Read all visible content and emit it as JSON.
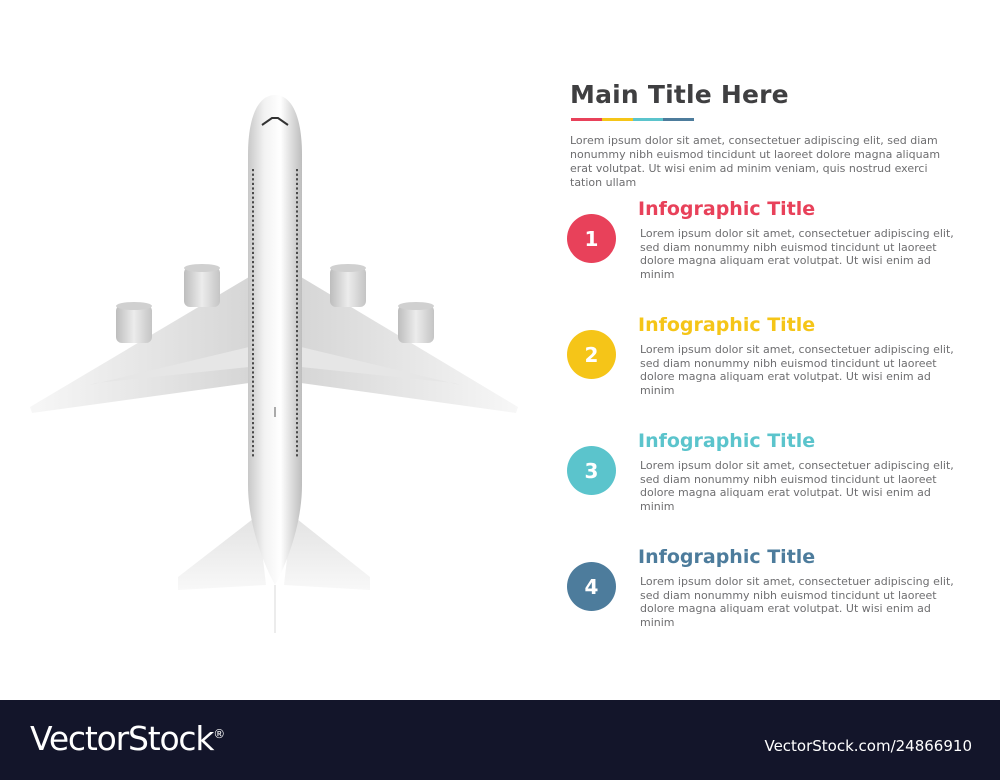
{
  "main": {
    "title": "Main Title Here",
    "rule_colors": [
      "#e8415a",
      "#f5c518",
      "#5bc4cc",
      "#4d7c9c"
    ],
    "intro": "Lorem ipsum dolor sit amet, consectetuer adipiscing elit, sed diam nonummy nibh euismod tincidunt ut laoreet dolore magna aliquam erat volutpat. Ut wisi enim ad minim veniam, quis nostrud exerci tation ullam"
  },
  "steps": [
    {
      "number": "1",
      "title": "Infographic Title",
      "color": "#e8415a",
      "text": "Lorem ipsum dolor sit amet, consectetuer adipiscing elit, sed diam nonummy nibh euismod tincidunt ut laoreet dolore magna aliquam erat volutpat. Ut wisi enim ad minim"
    },
    {
      "number": "2",
      "title": "Infographic Title",
      "color": "#f5c518",
      "text": "Lorem ipsum dolor sit amet, consectetuer adipiscing elit, sed diam nonummy nibh euismod tincidunt ut laoreet dolore magna aliquam erat volutpat. Ut wisi enim ad minim"
    },
    {
      "number": "3",
      "title": "Infographic Title",
      "color": "#5bc4cc",
      "text": "Lorem ipsum dolor sit amet, consectetuer adipiscing elit, sed diam nonummy nibh euismod tincidunt ut laoreet dolore magna aliquam erat volutpat. Ut wisi enim ad minim"
    },
    {
      "number": "4",
      "title": "Infographic Title",
      "color": "#4d7c9c",
      "text": "Lorem ipsum dolor sit amet, consectetuer adipiscing elit, sed diam nonummy nibh euismod tincidunt ut laoreet dolore magna aliquam erat volutpat. Ut wisi enim ad minim"
    }
  ],
  "footer": {
    "brand": "VectorStock",
    "brand_mark": "®",
    "image_id": "VectorStock.com/24866910"
  }
}
